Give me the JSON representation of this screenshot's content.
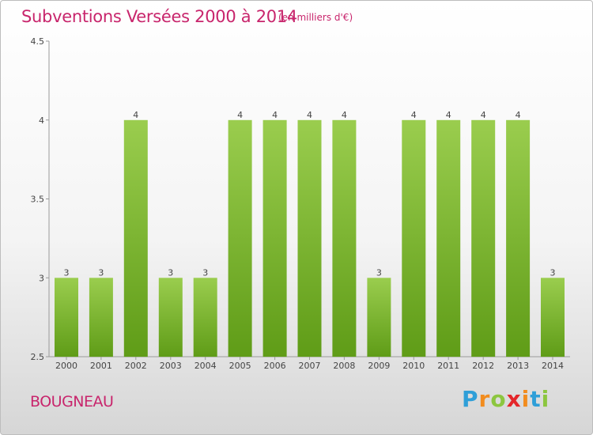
{
  "header": {
    "title": "Subventions Versées 2000 à 2014",
    "subtitle": "(en milliers d'€)"
  },
  "footer": {
    "place": "BOUGNEAU",
    "logo_letters": [
      {
        "char": "P",
        "color": "#2f9fd8"
      },
      {
        "char": "r",
        "color": "#f28c1e"
      },
      {
        "char": "o",
        "color": "#8cc63f"
      },
      {
        "char": "x",
        "color": "#e4262a"
      },
      {
        "char": "i",
        "color": "#f28c1e"
      },
      {
        "char": "t",
        "color": "#2f9fd8"
      },
      {
        "char": "i",
        "color": "#8cc63f"
      }
    ]
  },
  "chart_data": {
    "type": "bar",
    "title": "Subventions Versées 2000 à 2014",
    "categories": [
      "2000",
      "2001",
      "2002",
      "2003",
      "2004",
      "2005",
      "2006",
      "2007",
      "2008",
      "2009",
      "2010",
      "2011",
      "2012",
      "2013",
      "2014"
    ],
    "values": [
      3,
      3,
      4,
      3,
      3,
      4,
      4,
      4,
      4,
      3,
      4,
      4,
      4,
      4,
      3
    ],
    "ylim": [
      2.5,
      4.5
    ],
    "yticks": [
      2.5,
      3,
      3.5,
      4,
      4.5
    ],
    "ytick_labels": [
      "2.5",
      "3",
      "3.5",
      "4",
      "4.5"
    ],
    "data_labels": true,
    "grid": false,
    "bar_color_top": "#9acd4e",
    "bar_color_bottom": "#5f9c17"
  }
}
